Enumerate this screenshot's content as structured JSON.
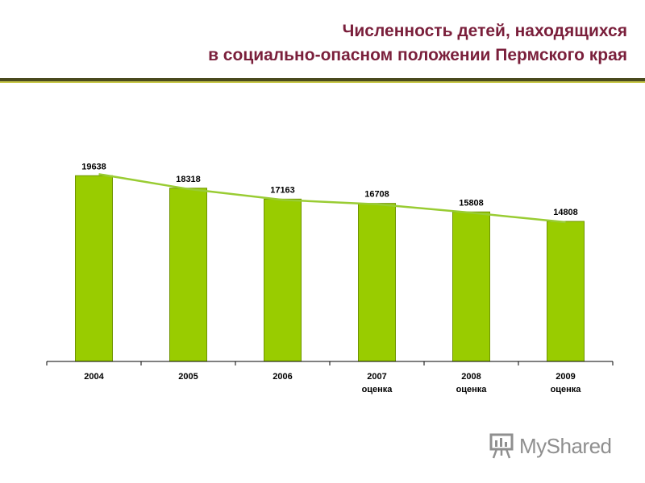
{
  "title": {
    "line1": "Численность детей, находящихся",
    "line2": "в социально-опасном положении Пермского края"
  },
  "colors": {
    "title": "#7a1f3b",
    "bar": "#99cc00",
    "bar_border": "#6f9400",
    "trend": "#99cc33",
    "rule_dark": "#4a4a1e",
    "rule_light": "#c8c84a"
  },
  "chart_data": {
    "type": "bar",
    "categories": [
      "2004",
      "2005",
      "2006",
      "2007",
      "2008",
      "2009"
    ],
    "category_sublabels": [
      "",
      "",
      "",
      "оценка",
      "оценка",
      "оценка"
    ],
    "values": [
      19638,
      18318,
      17163,
      16708,
      15808,
      14808
    ],
    "data_labels": [
      "19638",
      "18318",
      "17163",
      "16708",
      "15808",
      "14808"
    ],
    "trendline": true,
    "ylim": [
      0,
      20000
    ],
    "grid": false,
    "legend": "none"
  },
  "watermark": {
    "text": "MyShared",
    "icon": "presentation-board-icon"
  }
}
